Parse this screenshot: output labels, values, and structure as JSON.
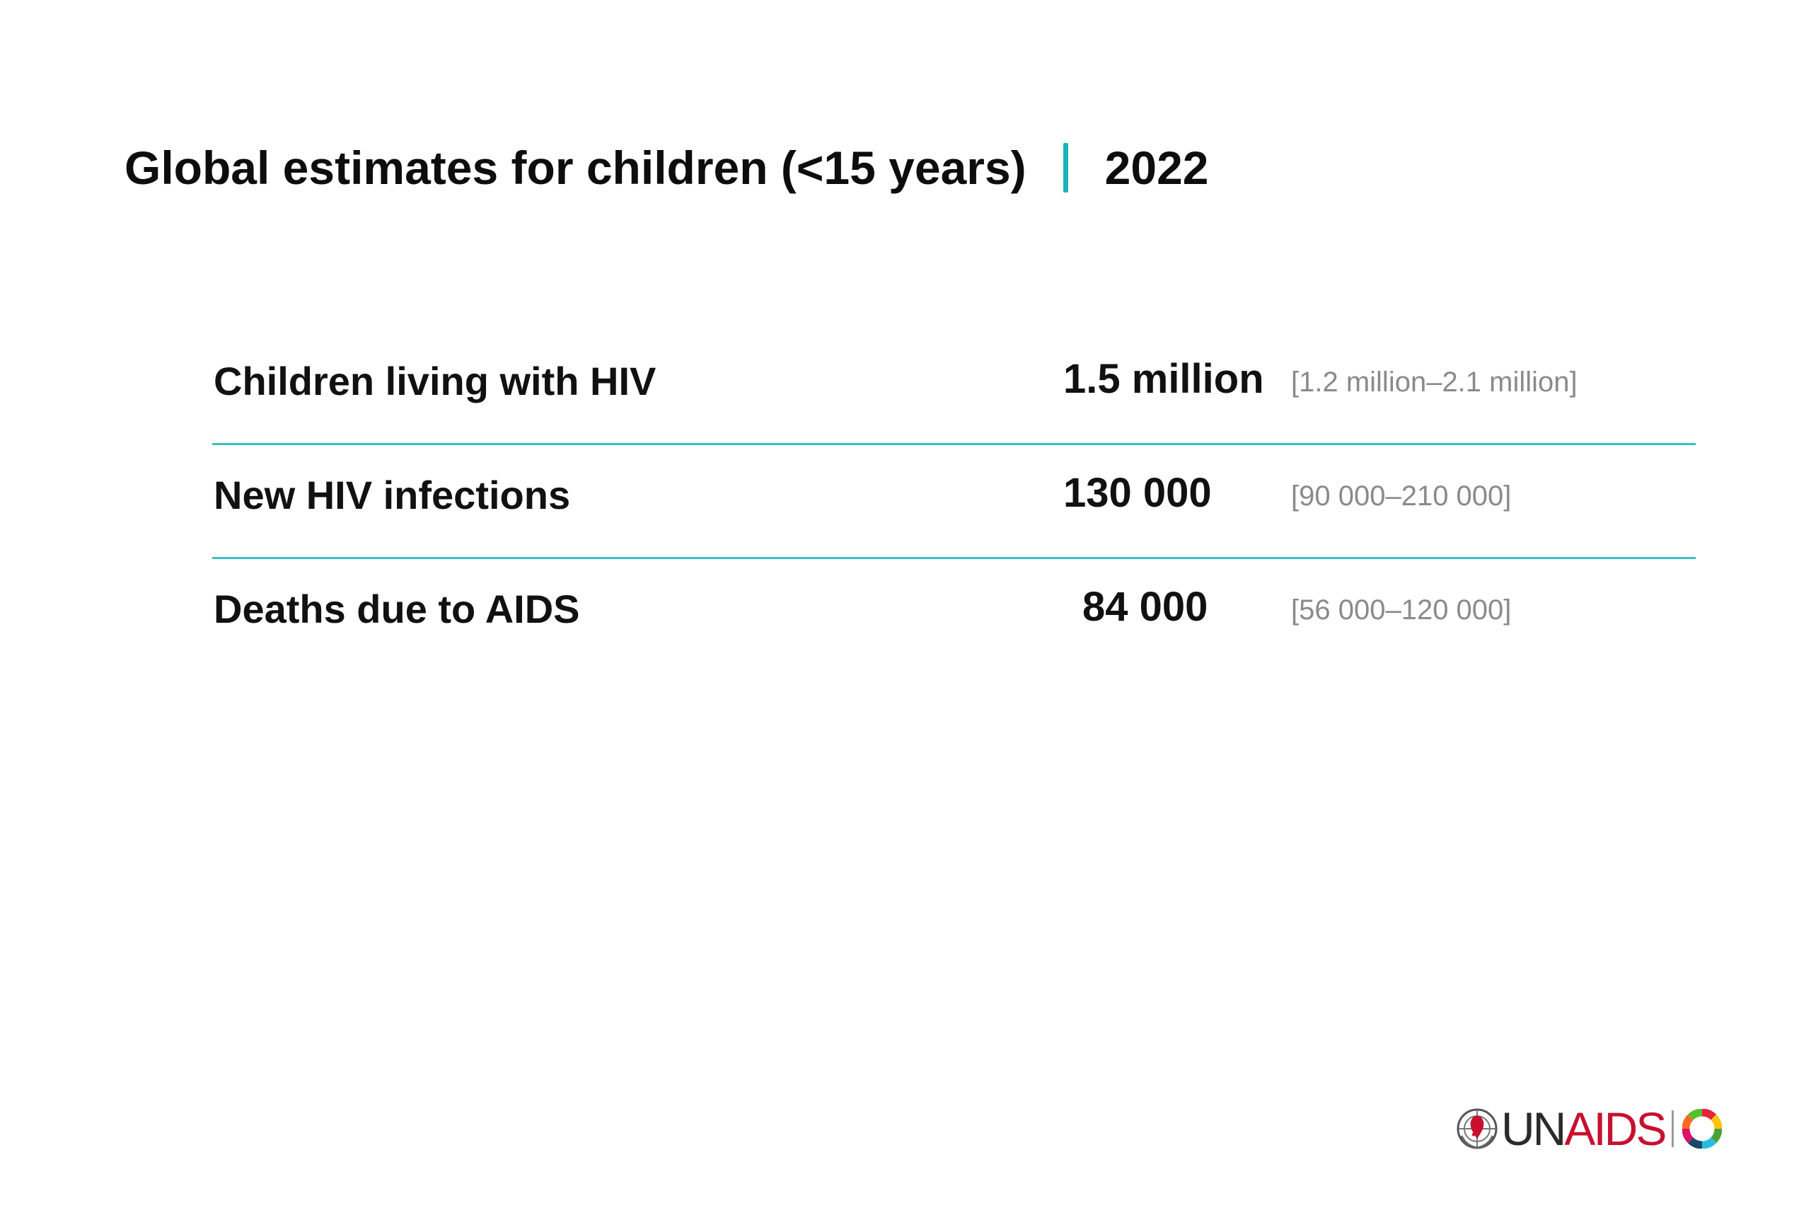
{
  "title": {
    "text": "Global estimates for children (<15 years)",
    "year": "2022",
    "divider_color": "#1ab4b8"
  },
  "rows": [
    {
      "label": "Children living with HIV",
      "value": "1.5 million",
      "range": "[1.2 million–2.1 million]"
    },
    {
      "label": "New HIV infections",
      "value": "130 000",
      "range": "[90 000–210 000]"
    },
    {
      "label": "Deaths due to AIDS",
      "value": "84 000",
      "range": "[56 000–120 000]"
    }
  ],
  "colors": {
    "row_divider": "#3dbfc3",
    "range_text": "#8a8a8a",
    "logo_red": "#c8102e"
  },
  "logo": {
    "icon": "un-emblem-icon",
    "text_un": "UN",
    "text_aids": "AIDS",
    "sdg_icon": "sdg-wheel-icon"
  }
}
